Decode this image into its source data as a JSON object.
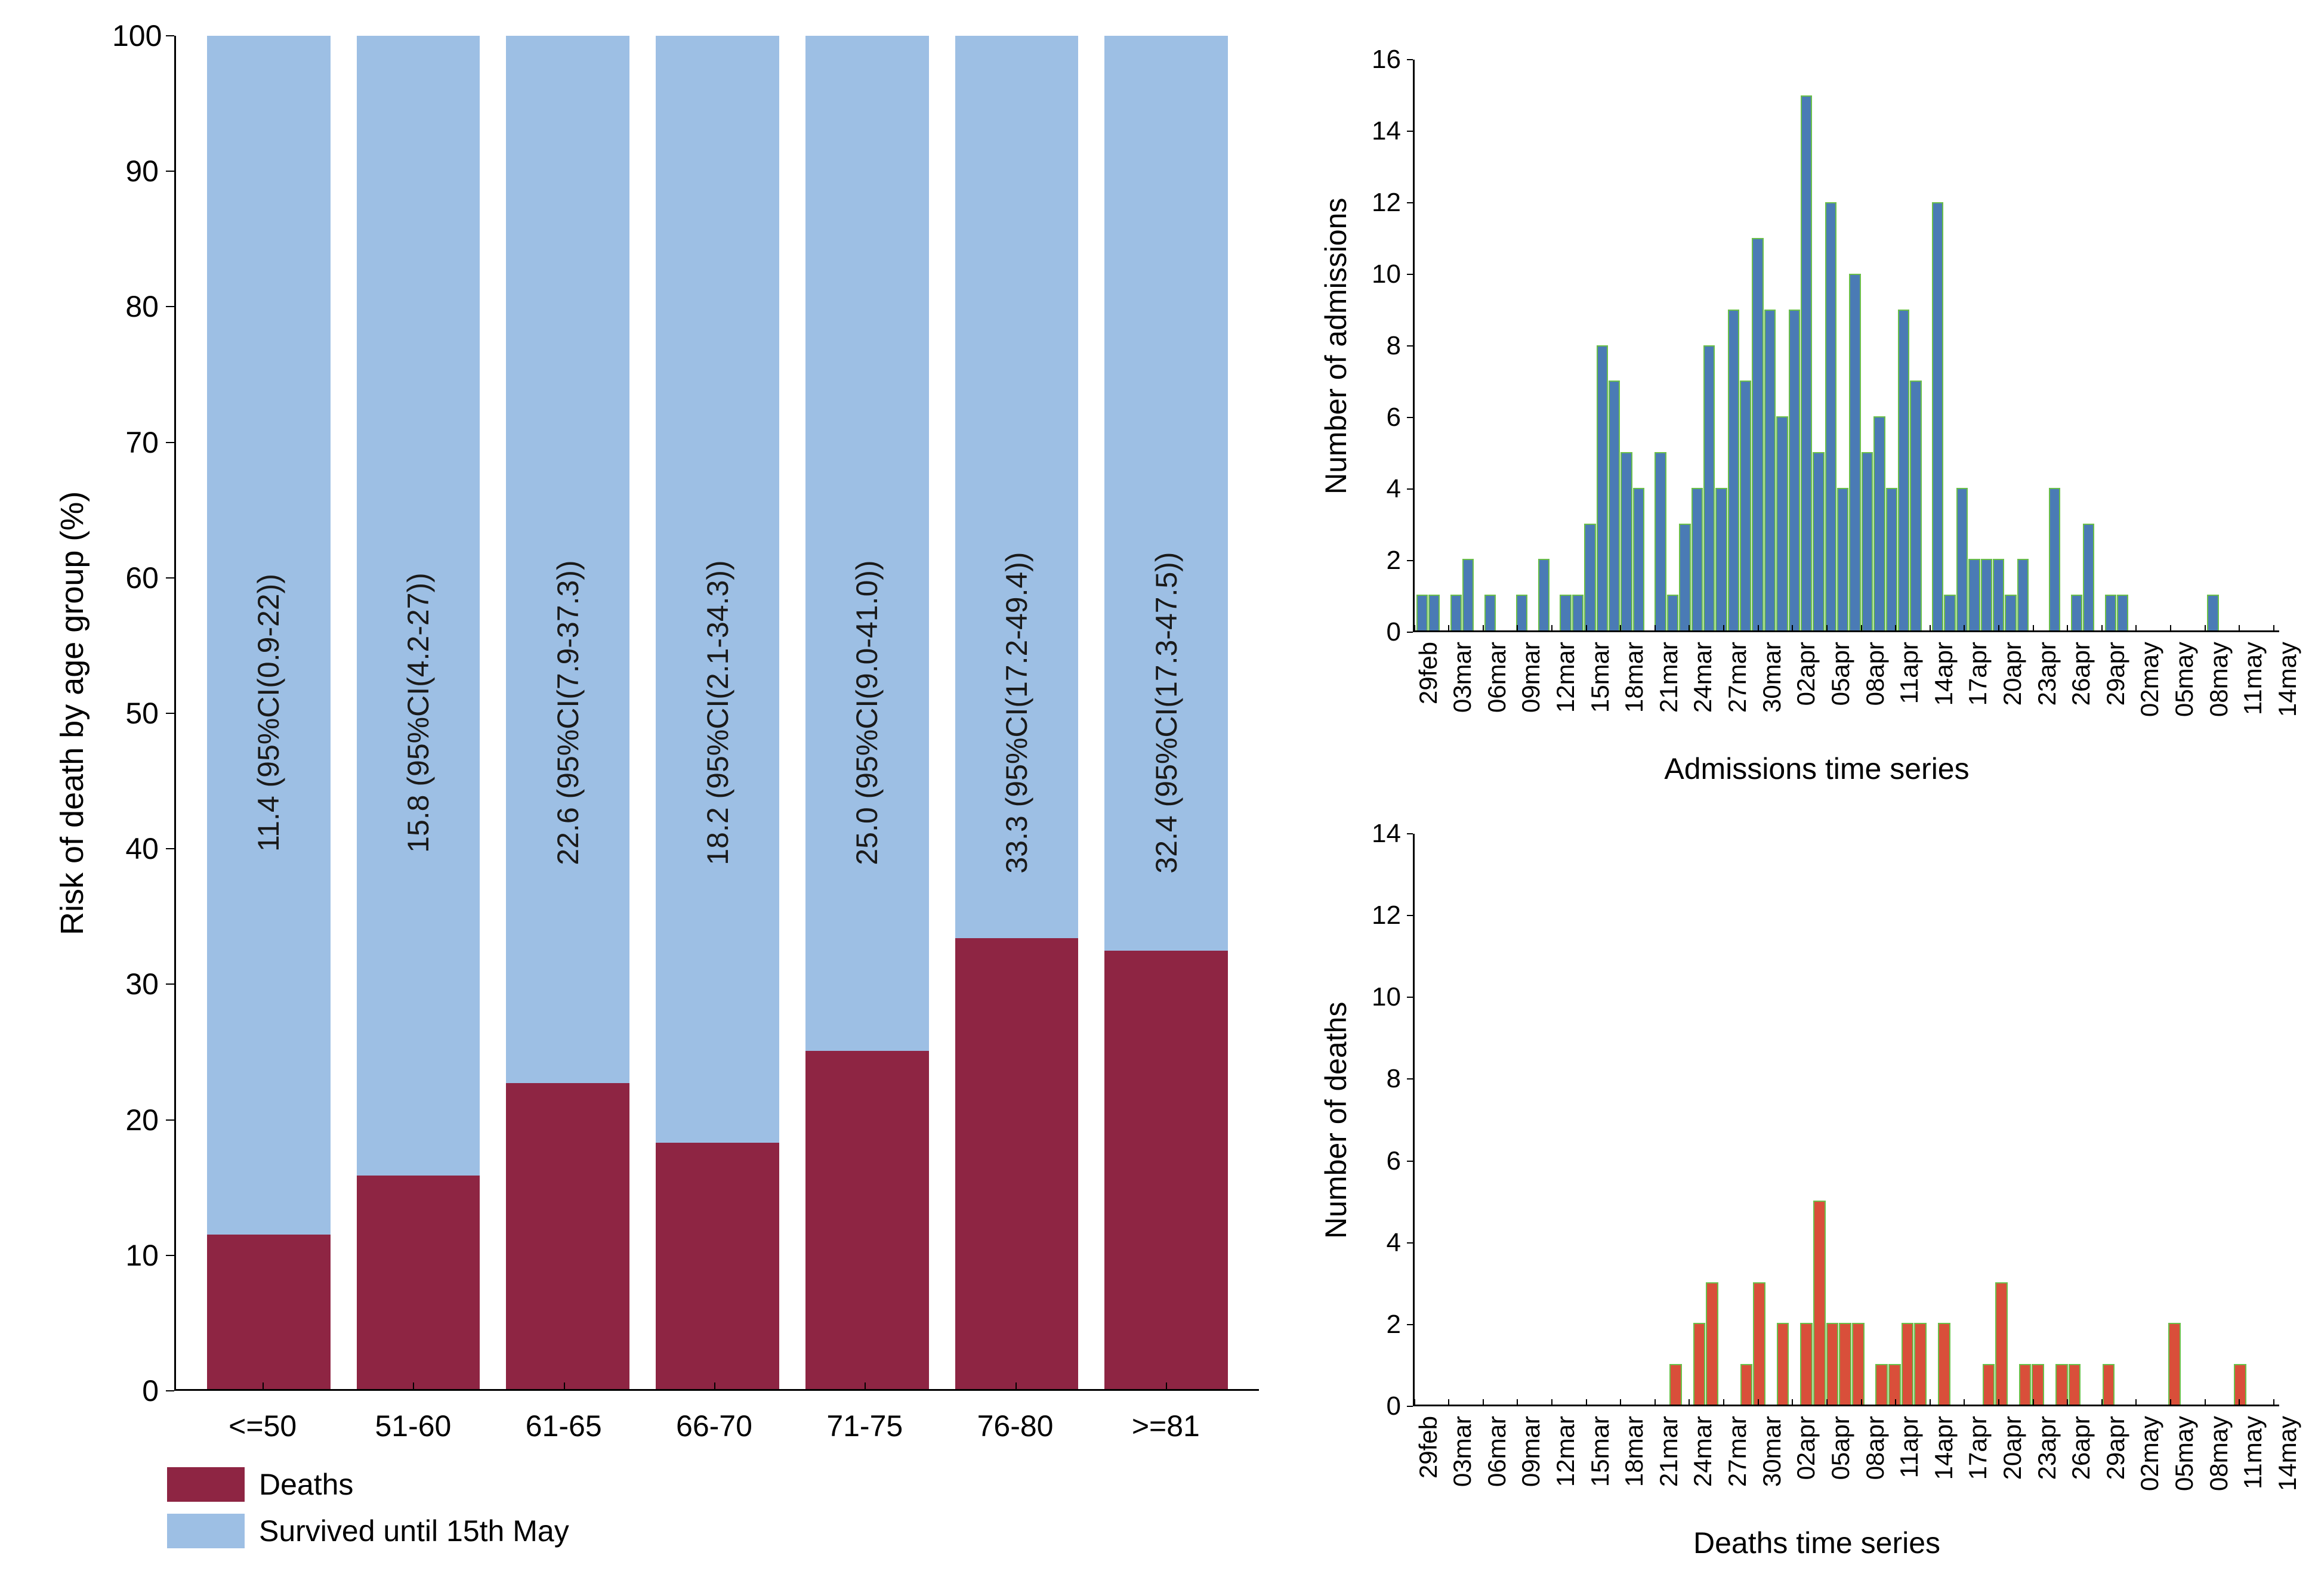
{
  "colors": {
    "deaths": "#8e2543",
    "survived": "#9dbfe4",
    "ts_fill": "#4a7bb5",
    "ts_stroke": "#6bbf4a",
    "ts_deaths_fill": "#d94f3a",
    "background": "#ffffff",
    "axis": "#000000",
    "text": "#1a1a1a"
  },
  "stacked": {
    "type": "stacked-bar",
    "ylabel": "Risk of death by age group (%)",
    "ylim": [
      0,
      100
    ],
    "ytick_step": 10,
    "bar_width": 0.78,
    "categories": [
      "<=50",
      "51-60",
      "61-65",
      "66-70",
      "71-75",
      "76-80",
      ">=81"
    ],
    "deaths_pct": [
      11.4,
      15.8,
      22.6,
      18.2,
      25.0,
      33.3,
      32.4
    ],
    "bar_labels": [
      "11.4 (95%CI(0.9-22))",
      "15.8 (95%CI(4.2-27))",
      "22.6 (95%CI(7.9-37.3))",
      "18.2 (95%CI(2.1-34.3))",
      "25.0 (95%CI(9.0-41.0))",
      "33.3 (95%CI(17.2-49.4))",
      "32.4 (95%CI(17.3-47.5))"
    ],
    "label_fontsize": 50,
    "axis_fontsize": 50,
    "legend": {
      "items": [
        {
          "label": "Deaths",
          "color_key": "deaths"
        },
        {
          "label": "Survived until 15th May",
          "color_key": "survived"
        }
      ]
    }
  },
  "time_axis": {
    "dates": [
      "29feb",
      "01mar",
      "02mar",
      "03mar",
      "04mar",
      "05mar",
      "06mar",
      "07mar",
      "08mar",
      "09mar",
      "10mar",
      "11mar",
      "12mar",
      "13mar",
      "14mar",
      "15mar",
      "16mar",
      "17mar",
      "18mar",
      "19mar",
      "20mar",
      "21mar",
      "22mar",
      "23mar",
      "24mar",
      "25mar",
      "26mar",
      "27mar",
      "28mar",
      "29mar",
      "30mar",
      "31mar",
      "01apr",
      "02apr",
      "03apr",
      "04apr",
      "05apr",
      "06apr",
      "07apr",
      "08apr",
      "09apr",
      "10apr",
      "11apr",
      "12apr",
      "13apr",
      "14apr",
      "15apr",
      "16apr",
      "17apr",
      "18apr",
      "19apr",
      "20apr",
      "21apr",
      "22apr",
      "23apr",
      "24apr",
      "25apr",
      "26apr",
      "27apr",
      "28apr",
      "29apr",
      "30apr",
      "01may",
      "02may",
      "03may",
      "04may",
      "05may",
      "06may",
      "07may",
      "08may",
      "09may",
      "10may",
      "11may",
      "12may",
      "13may",
      "14may"
    ],
    "tick_labels": [
      "29feb",
      "03mar",
      "06mar",
      "09mar",
      "12mar",
      "15mar",
      "18mar",
      "21mar",
      "24mar",
      "27mar",
      "30mar",
      "02apr",
      "05apr",
      "08apr",
      "11apr",
      "14apr",
      "17apr",
      "20apr",
      "23apr",
      "26apr",
      "29apr",
      "02may",
      "05may",
      "08may",
      "11may",
      "14may"
    ],
    "tick_every": 3
  },
  "admissions": {
    "type": "bar",
    "ylabel": "Number of admissions",
    "xlabel": "Admissions time series",
    "ylim": [
      0,
      16
    ],
    "ytick_step": 2,
    "values": [
      1,
      1,
      0,
      1,
      2,
      0,
      1,
      0,
      0,
      1,
      0,
      2,
      0,
      1,
      1,
      3,
      8,
      7,
      5,
      4,
      0,
      5,
      1,
      3,
      4,
      8,
      4,
      9,
      7,
      11,
      9,
      6,
      9,
      15,
      5,
      12,
      4,
      10,
      5,
      6,
      4,
      9,
      7,
      0,
      12,
      1,
      4,
      2,
      2,
      2,
      1,
      2,
      0,
      0,
      4,
      0,
      1,
      3,
      0,
      1,
      1,
      0,
      0,
      0,
      0,
      0,
      0,
      0,
      0,
      1,
      0,
      0,
      0,
      0,
      0,
      0
    ],
    "bar_fill_key": "ts_fill",
    "bar_stroke_key": "ts_stroke",
    "label_fontsize": 50,
    "axis_fontsize": 44
  },
  "deaths_ts": {
    "type": "bar",
    "ylabel": "Number of deaths",
    "xlabel": "Deaths time series",
    "ylim": [
      0,
      14
    ],
    "ytick_step": 2,
    "values": [
      0,
      0,
      0,
      0,
      0,
      0,
      0,
      0,
      0,
      0,
      0,
      0,
      0,
      0,
      0,
      0,
      0,
      0,
      0,
      0,
      0,
      0,
      0,
      0,
      1,
      0,
      2,
      3,
      0,
      0,
      1,
      3,
      0,
      2,
      0,
      2,
      5,
      2,
      2,
      2,
      0,
      1,
      1,
      2,
      2,
      0,
      2,
      0,
      0,
      0,
      1,
      3,
      0,
      1,
      1,
      0,
      1,
      1,
      0,
      0,
      1,
      0,
      0,
      0,
      0,
      0,
      2,
      0,
      0,
      0,
      0,
      0,
      1,
      0,
      0,
      0
    ],
    "bar_fill_key": "ts_deaths_fill",
    "bar_stroke_key": "ts_stroke",
    "label_fontsize": 50,
    "axis_fontsize": 44
  }
}
